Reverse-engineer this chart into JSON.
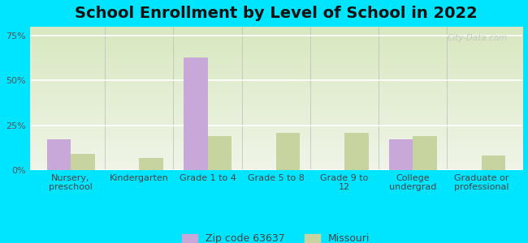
{
  "title": "School Enrollment by Level of School in 2022",
  "categories": [
    "Nursery,\npreschool",
    "Kindergarten",
    "Grade 1 to 4",
    "Grade 5 to 8",
    "Grade 9 to\n12",
    "College\nundergrad",
    "Graduate or\nprofessional"
  ],
  "zip_values": [
    17,
    0,
    63,
    0,
    0,
    17,
    0
  ],
  "mo_values": [
    9,
    7,
    19,
    21,
    21,
    19,
    8
  ],
  "zip_color": "#c8a8d8",
  "mo_color": "#c8d4a0",
  "background_outer": "#00e5ff",
  "background_inner_top": "#f0f5e8",
  "background_inner_bottom": "#d8e8c0",
  "ylim": [
    0,
    80
  ],
  "yticks": [
    0,
    25,
    50,
    75
  ],
  "ytick_labels": [
    "0%",
    "25%",
    "50%",
    "75%"
  ],
  "title_fontsize": 14,
  "tick_fontsize": 8,
  "legend_label_zip": "Zip code 63637",
  "legend_label_mo": "Missouri",
  "watermark": "City-Data.com"
}
